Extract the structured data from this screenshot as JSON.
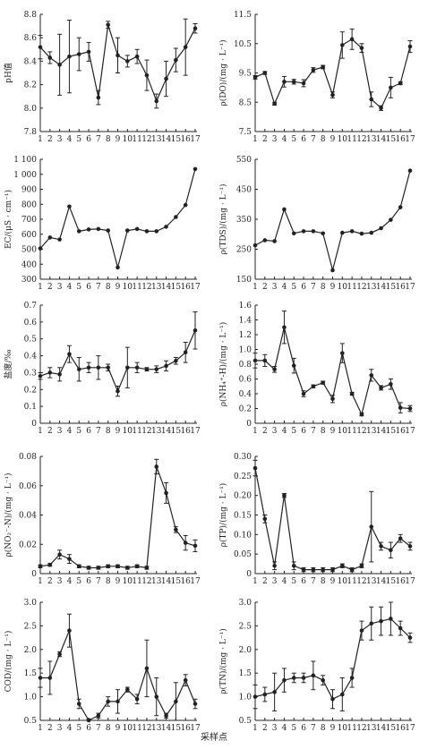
{
  "xlabel": "采样点",
  "chart_data": [
    {
      "type": "line",
      "ylabel": "pH值",
      "ylim": [
        7.8,
        8.8
      ],
      "yticks": [
        "7.8",
        "8.0",
        "8.2",
        "8.4",
        "8.6",
        "8.8"
      ],
      "x": [
        1,
        2,
        3,
        4,
        5,
        6,
        7,
        8,
        9,
        10,
        11,
        12,
        13,
        14,
        15,
        16,
        17
      ],
      "values": [
        8.52,
        8.43,
        8.37,
        8.44,
        8.46,
        8.48,
        8.09,
        8.71,
        8.45,
        8.4,
        8.44,
        8.28,
        8.06,
        8.25,
        8.41,
        8.52,
        8.68
      ],
      "err": [
        0.1,
        0.05,
        0.26,
        0.31,
        0.14,
        0.08,
        0.06,
        0.03,
        0.15,
        0.05,
        0.06,
        0.13,
        0.06,
        0.15,
        0.1,
        0.24,
        0.04
      ]
    },
    {
      "type": "line",
      "ylabel": "ρ(DO)/(mg · L⁻¹)",
      "ylim": [
        7.5,
        11.5
      ],
      "yticks": [
        "7.5",
        "8.5",
        "9.5",
        "10.5",
        "11.5"
      ],
      "x": [
        1,
        2,
        3,
        4,
        5,
        6,
        7,
        8,
        9,
        10,
        11,
        12,
        13,
        14,
        15,
        16,
        17
      ],
      "values": [
        9.35,
        9.5,
        8.45,
        9.2,
        9.2,
        9.15,
        9.6,
        9.7,
        8.75,
        10.45,
        10.65,
        10.35,
        8.6,
        8.3,
        9.0,
        9.15,
        10.4
      ],
      "err": [
        0.06,
        0.05,
        0.05,
        0.18,
        0.08,
        0.12,
        0.08,
        0.06,
        0.1,
        0.45,
        0.35,
        0.15,
        0.25,
        0.08,
        0.35,
        0.05,
        0.2
      ]
    },
    {
      "type": "line",
      "ylabel": "EC/(μS · cm⁻¹)",
      "ylim": [
        300,
        1100
      ],
      "yticks": [
        "300",
        "400",
        "500",
        "600",
        "700",
        "800",
        "900",
        "1 000",
        "1 100"
      ],
      "x": [
        1,
        2,
        3,
        4,
        5,
        6,
        7,
        8,
        9,
        10,
        11,
        12,
        13,
        14,
        15,
        16,
        17
      ],
      "values": [
        505,
        578,
        565,
        785,
        620,
        632,
        635,
        625,
        378,
        625,
        635,
        620,
        620,
        650,
        715,
        795,
        1035
      ],
      "err": [
        0,
        0,
        0,
        0,
        0,
        0,
        0,
        0,
        0,
        0,
        0,
        0,
        0,
        0,
        0,
        0,
        0
      ]
    },
    {
      "type": "line",
      "ylabel": "ρ(TDS)/(mg · L⁻¹)",
      "ylim": [
        150,
        550
      ],
      "yticks": [
        "150",
        "250",
        "350",
        "450",
        "550"
      ],
      "x": [
        1,
        2,
        3,
        4,
        5,
        6,
        7,
        8,
        9,
        10,
        11,
        12,
        13,
        14,
        15,
        16,
        17
      ],
      "values": [
        263,
        280,
        277,
        383,
        303,
        310,
        310,
        303,
        180,
        305,
        310,
        302,
        305,
        320,
        348,
        390,
        512
      ],
      "err": [
        0,
        0,
        0,
        0,
        0,
        0,
        0,
        0,
        0,
        0,
        0,
        0,
        0,
        0,
        0,
        0,
        0
      ]
    },
    {
      "type": "line",
      "ylabel": "盐度/‰",
      "ylim": [
        0,
        0.7
      ],
      "yticks": [
        "0",
        "0.1",
        "0.2",
        "0.3",
        "0.4",
        "0.5",
        "0.6",
        "0.7"
      ],
      "x": [
        1,
        2,
        3,
        4,
        5,
        6,
        7,
        8,
        9,
        10,
        11,
        12,
        13,
        14,
        15,
        16,
        17
      ],
      "values": [
        0.28,
        0.3,
        0.29,
        0.41,
        0.32,
        0.33,
        0.33,
        0.33,
        0.19,
        0.33,
        0.33,
        0.32,
        0.32,
        0.34,
        0.37,
        0.42,
        0.55
      ],
      "err": [
        0.02,
        0.03,
        0.04,
        0.05,
        0.07,
        0.03,
        0.07,
        0.02,
        0.03,
        0.12,
        0.03,
        0.01,
        0.02,
        0.03,
        0.02,
        0.06,
        0.11
      ]
    },
    {
      "type": "line",
      "ylabel": "ρ(NH₄⁺-H)/(mg · L⁻¹)",
      "ylim": [
        0,
        1.6
      ],
      "yticks": [
        "0",
        "0.2",
        "0.4",
        "0.6",
        "0.8",
        "1.0",
        "1.2",
        "1.4",
        "1.6"
      ],
      "x": [
        1,
        2,
        3,
        4,
        5,
        6,
        7,
        8,
        9,
        10,
        11,
        12,
        13,
        14,
        15,
        16,
        17
      ],
      "values": [
        0.85,
        0.85,
        0.73,
        1.3,
        0.78,
        0.4,
        0.5,
        0.55,
        0.33,
        0.95,
        0.4,
        0.12,
        0.65,
        0.48,
        0.53,
        0.21,
        0.2
      ],
      "err": [
        0.1,
        0.08,
        0.04,
        0.22,
        0.1,
        0.04,
        0.02,
        0.02,
        0.05,
        0.13,
        0.02,
        0.02,
        0.08,
        0.03,
        0.07,
        0.07,
        0.04
      ]
    },
    {
      "type": "line",
      "ylabel": "ρ(NO₂⁻-N)/(mg · L⁻¹)",
      "ylim": [
        0,
        0.08
      ],
      "yticks": [
        "0",
        "0.02",
        "0.04",
        "0.06",
        "0.08"
      ],
      "x": [
        1,
        2,
        3,
        4,
        5,
        6,
        7,
        8,
        9,
        10,
        11,
        12,
        13,
        14,
        15,
        16,
        17
      ],
      "values": [
        0.005,
        0.006,
        0.013,
        0.01,
        0.005,
        0.004,
        0.004,
        0.005,
        0.005,
        0.004,
        0.005,
        0.004,
        0.073,
        0.055,
        0.03,
        0.021,
        0.019
      ],
      "err": [
        0.001,
        0.001,
        0.003,
        0.003,
        0.001,
        0.001,
        0.001,
        0.001,
        0.001,
        0.001,
        0.001,
        0.001,
        0.005,
        0.007,
        0.002,
        0.005,
        0.004
      ]
    },
    {
      "type": "line",
      "ylabel": "ρ(TP)/(mg · L⁻¹)",
      "ylim": [
        0,
        0.3
      ],
      "yticks": [
        "0",
        "0.05",
        "0.10",
        "0.15",
        "0.20",
        "0.25",
        "0.30"
      ],
      "x": [
        1,
        2,
        3,
        4,
        5,
        6,
        7,
        8,
        9,
        10,
        11,
        12,
        13,
        14,
        15,
        16,
        17
      ],
      "values": [
        0.27,
        0.14,
        0.02,
        0.2,
        0.02,
        0.01,
        0.01,
        0.01,
        0.01,
        0.02,
        0.01,
        0.02,
        0.12,
        0.07,
        0.06,
        0.09,
        0.07
      ],
      "err": [
        0.02,
        0.01,
        0.01,
        0.005,
        0.01,
        0.005,
        0.005,
        0.005,
        0.005,
        0.005,
        0.005,
        0.005,
        0.09,
        0.01,
        0.02,
        0.01,
        0.01
      ]
    },
    {
      "type": "line",
      "ylabel": "COD/(mg · L⁻¹)",
      "ylim": [
        0.5,
        3.0
      ],
      "yticks": [
        "0.5",
        "1.0",
        "1.5",
        "2.0",
        "2.5",
        "3.0"
      ],
      "x": [
        1,
        2,
        3,
        4,
        5,
        6,
        7,
        8,
        9,
        10,
        11,
        12,
        13,
        14,
        15,
        16,
        17
      ],
      "values": [
        1.4,
        1.4,
        1.9,
        2.4,
        0.85,
        0.5,
        0.6,
        0.9,
        0.9,
        1.15,
        0.95,
        1.6,
        1.0,
        0.6,
        0.9,
        1.35,
        0.85
      ],
      "err": [
        0.2,
        0.35,
        0.05,
        0.35,
        0.1,
        0.03,
        0.05,
        0.1,
        0.25,
        0.05,
        0.1,
        0.6,
        0.4,
        0.05,
        0.4,
        0.12,
        0.1
      ]
    },
    {
      "type": "line",
      "ylabel": "ρ(TN)/(mg · L⁻¹)",
      "ylim": [
        0.5,
        3.0
      ],
      "yticks": [
        "0.5",
        "1.0",
        "1.5",
        "2.0",
        "2.5",
        "3.0"
      ],
      "x": [
        1,
        2,
        3,
        4,
        5,
        6,
        7,
        8,
        9,
        10,
        11,
        12,
        13,
        14,
        15,
        16,
        17
      ],
      "values": [
        1.0,
        1.05,
        1.1,
        1.35,
        1.4,
        1.4,
        1.45,
        1.35,
        0.95,
        1.05,
        1.4,
        2.4,
        2.55,
        2.6,
        2.65,
        2.45,
        2.25
      ],
      "err": [
        0.25,
        0.15,
        0.4,
        0.25,
        0.1,
        0.1,
        0.3,
        0.1,
        0.2,
        0.35,
        0.2,
        0.2,
        0.35,
        0.3,
        0.35,
        0.15,
        0.1
      ]
    }
  ]
}
